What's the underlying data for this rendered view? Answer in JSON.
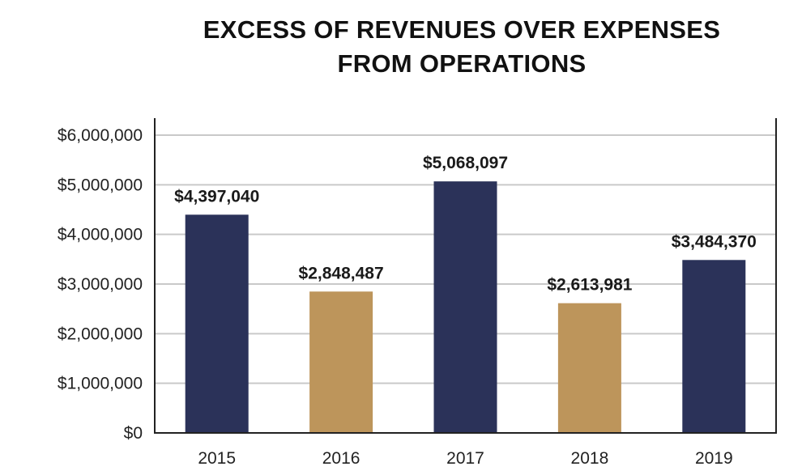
{
  "title_lines": [
    "EXCESS OF REVENUES OVER EXPENSES",
    "FROM OPERATIONS"
  ],
  "chart_data": {
    "type": "bar",
    "title": "EXCESS OF REVENUES OVER EXPENSES FROM OPERATIONS",
    "categories": [
      "2015",
      "2016",
      "2017",
      "2018",
      "2019"
    ],
    "values": [
      4397040,
      2848487,
      5068097,
      2613981,
      3484370
    ],
    "data_labels": [
      "$4,397,040",
      "$2,848,487",
      "$5,068,097",
      "$2,613,981",
      "$3,484,370"
    ],
    "bar_colors": [
      "#2b3259",
      "#bd955b",
      "#2b3259",
      "#bd955b",
      "#2b3259"
    ],
    "ylim": [
      0,
      6000000
    ],
    "yticks": [
      0,
      1000000,
      2000000,
      3000000,
      4000000,
      5000000,
      6000000
    ],
    "ytick_labels": [
      "$0",
      "$1,000,000",
      "$2,000,000",
      "$3,000,000",
      "$4,000,000",
      "$5,000,000",
      "$6,000,000"
    ],
    "xlabel": "",
    "ylabel": "",
    "grid": true,
    "legend": "none"
  }
}
